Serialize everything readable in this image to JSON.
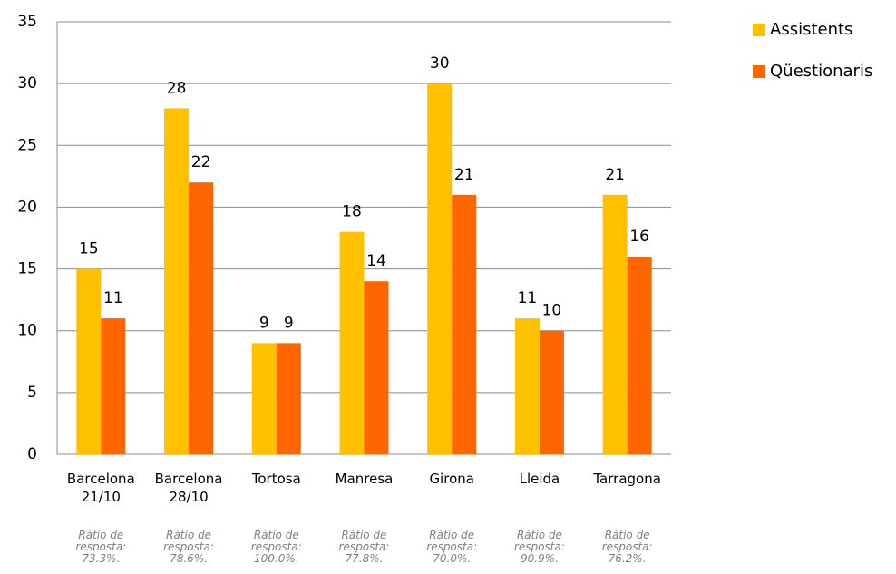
{
  "chart_data": {
    "type": "bar",
    "categories": [
      "Barcelona 21/10",
      "Barcelona 28/10",
      "Tortosa",
      "Manresa",
      "Girona",
      "Lleida",
      "Tarragona"
    ],
    "series": [
      {
        "name": "Assistents",
        "color": "#ffc000",
        "values": [
          15,
          28,
          9,
          18,
          30,
          11,
          21
        ]
      },
      {
        "name": "Qüestionaris",
        "color": "#ff6600",
        "values": [
          11,
          22,
          9,
          14,
          21,
          10,
          16
        ]
      }
    ],
    "annotations": [
      "Ràtio de resposta: 73.3%.",
      "Ràtio de resposta: 78.6%.",
      "Ràtio de resposta: 100.0%.",
      "Ràtio de resposta: 77.8%.",
      "Ràtio de resposta: 70.0%.",
      "Ràtio de resposta: 90.9%.",
      "Ràtio de resposta: 76.2%."
    ],
    "ylim": [
      0,
      35
    ],
    "yticks": [
      0,
      5,
      10,
      15,
      20,
      25,
      30,
      35
    ],
    "grid": true,
    "legend": "right"
  }
}
